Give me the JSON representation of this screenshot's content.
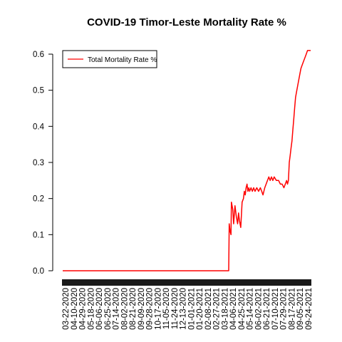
{
  "chart_data": {
    "type": "line",
    "title": "COVID-19 Timor-Leste Mortality Rate %",
    "xlabel": "",
    "ylabel": "",
    "ylim": [
      0,
      0.6
    ],
    "yticks": [
      "0.0",
      "0.1",
      "0.2",
      "0.3",
      "0.4",
      "0.5",
      "0.6"
    ],
    "xticks": [
      "03-22-2020",
      "04-10-2020",
      "04-29-2020",
      "05-18-2020",
      "06-06-2020",
      "06-25-2020",
      "07-14-2020",
      "08-02-2020",
      "08-21-2020",
      "09-09-2020",
      "09-28-2020",
      "10-17-2020",
      "11-05-2020",
      "11-24-2020",
      "12-13-2020",
      "01-01-2021",
      "01-20-2021",
      "02-08-2021",
      "02-27-2021",
      "03-18-2021",
      "04-06-2021",
      "04-25-2021",
      "05-14-2021",
      "06-02-2021",
      "06-21-2021",
      "07-10-2021",
      "07-29-2021",
      "08-17-2021",
      "09-05-2021",
      "09-24-2021"
    ],
    "legend": {
      "position": "top-left",
      "entries": [
        "Total Mortality Rate %"
      ]
    },
    "grid": false,
    "color": "#ff0000",
    "series": [
      {
        "name": "Total Mortality Rate %",
        "points": [
          [
            "03-22-2020",
            0.0
          ],
          [
            "03-30-2021",
            0.0
          ],
          [
            "03-31-2021",
            0.13
          ],
          [
            "04-02-2021",
            0.11
          ],
          [
            "04-04-2021",
            0.1
          ],
          [
            "04-05-2021",
            0.19
          ],
          [
            "04-08-2021",
            0.17
          ],
          [
            "04-10-2021",
            0.13
          ],
          [
            "04-13-2021",
            0.18
          ],
          [
            "04-16-2021",
            0.15
          ],
          [
            "04-19-2021",
            0.13
          ],
          [
            "04-21-2021",
            0.16
          ],
          [
            "04-23-2021",
            0.14
          ],
          [
            "04-26-2021",
            0.12
          ],
          [
            "04-29-2021",
            0.19
          ],
          [
            "05-02-2021",
            0.2
          ],
          [
            "05-04-2021",
            0.22
          ],
          [
            "05-06-2021",
            0.21
          ],
          [
            "05-08-2021",
            0.23
          ],
          [
            "05-10-2021",
            0.24
          ],
          [
            "05-12-2021",
            0.22
          ],
          [
            "05-14-2021",
            0.23
          ],
          [
            "05-16-2021",
            0.22
          ],
          [
            "05-19-2021",
            0.23
          ],
          [
            "05-22-2021",
            0.22
          ],
          [
            "05-25-2021",
            0.23
          ],
          [
            "05-28-2021",
            0.22
          ],
          [
            "06-01-2021",
            0.23
          ],
          [
            "06-05-2021",
            0.22
          ],
          [
            "06-09-2021",
            0.23
          ],
          [
            "06-12-2021",
            0.22
          ],
          [
            "06-15-2021",
            0.21
          ],
          [
            "06-19-2021",
            0.23
          ],
          [
            "06-22-2021",
            0.24
          ],
          [
            "06-25-2021",
            0.25
          ],
          [
            "06-28-2021",
            0.26
          ],
          [
            "07-01-2021",
            0.25
          ],
          [
            "07-04-2021",
            0.26
          ],
          [
            "07-07-2021",
            0.25
          ],
          [
            "07-10-2021",
            0.26
          ],
          [
            "07-15-2021",
            0.25
          ],
          [
            "07-20-2021",
            0.25
          ],
          [
            "07-24-2021",
            0.24
          ],
          [
            "07-28-2021",
            0.24
          ],
          [
            "08-01-2021",
            0.23
          ],
          [
            "08-04-2021",
            0.24
          ],
          [
            "08-07-2021",
            0.25
          ],
          [
            "08-09-2021",
            0.24
          ],
          [
            "08-11-2021",
            0.25
          ],
          [
            "08-13-2021",
            0.3
          ],
          [
            "08-15-2021",
            0.32
          ],
          [
            "08-17-2021",
            0.34
          ],
          [
            "08-19-2021",
            0.36
          ],
          [
            "08-21-2021",
            0.39
          ],
          [
            "08-23-2021",
            0.42
          ],
          [
            "08-25-2021",
            0.45
          ],
          [
            "08-27-2021",
            0.48
          ],
          [
            "08-30-2021",
            0.5
          ],
          [
            "09-02-2021",
            0.52
          ],
          [
            "09-05-2021",
            0.54
          ],
          [
            "09-08-2021",
            0.56
          ],
          [
            "09-11-2021",
            0.57
          ],
          [
            "09-14-2021",
            0.58
          ],
          [
            "09-17-2021",
            0.59
          ],
          [
            "09-20-2021",
            0.6
          ],
          [
            "09-23-2021",
            0.61
          ],
          [
            "09-30-2021",
            0.61
          ]
        ]
      }
    ]
  }
}
